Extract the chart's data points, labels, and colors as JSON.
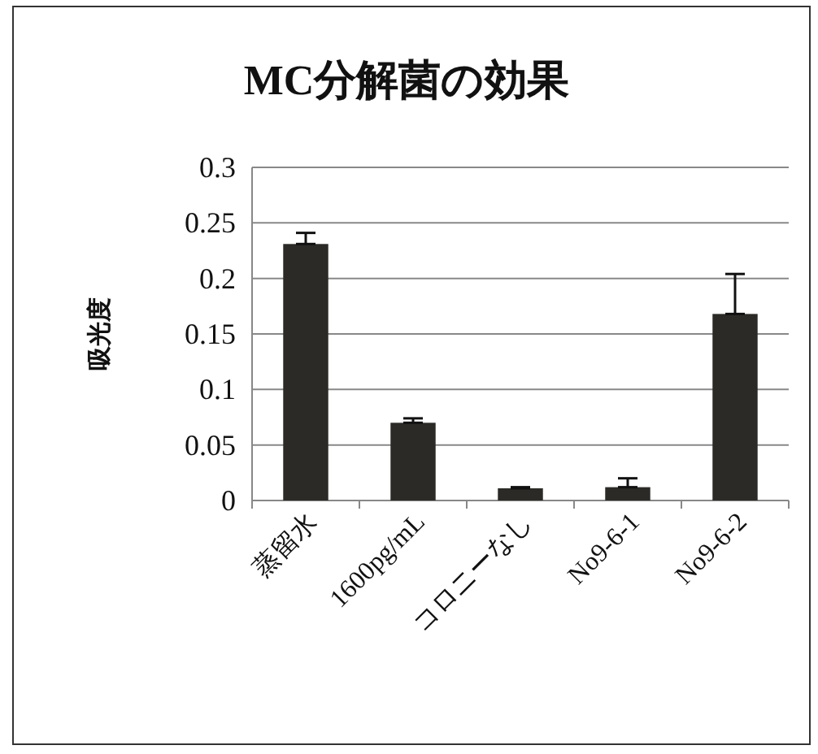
{
  "chart_data": {
    "type": "bar",
    "title": "MC分解菌の効果",
    "ylabel": "吸光度",
    "categories": [
      "蒸留水",
      "1600pg/mL",
      "コロニーなし",
      "No9-6-1",
      "No9-6-2"
    ],
    "values": [
      0.231,
      0.07,
      0.011,
      0.012,
      0.168
    ],
    "errors": [
      [
        0.231,
        0.241
      ],
      [
        0.07,
        0.074
      ],
      [
        0.011,
        0.012
      ],
      [
        0.012,
        0.02
      ],
      [
        0.168,
        0.204
      ]
    ],
    "color": "#2b2a26",
    "ylim": [
      0,
      0.3
    ],
    "yticks": [
      0,
      0.05,
      0.1,
      0.15,
      0.2,
      0.25,
      0.3
    ],
    "grid": "y"
  }
}
